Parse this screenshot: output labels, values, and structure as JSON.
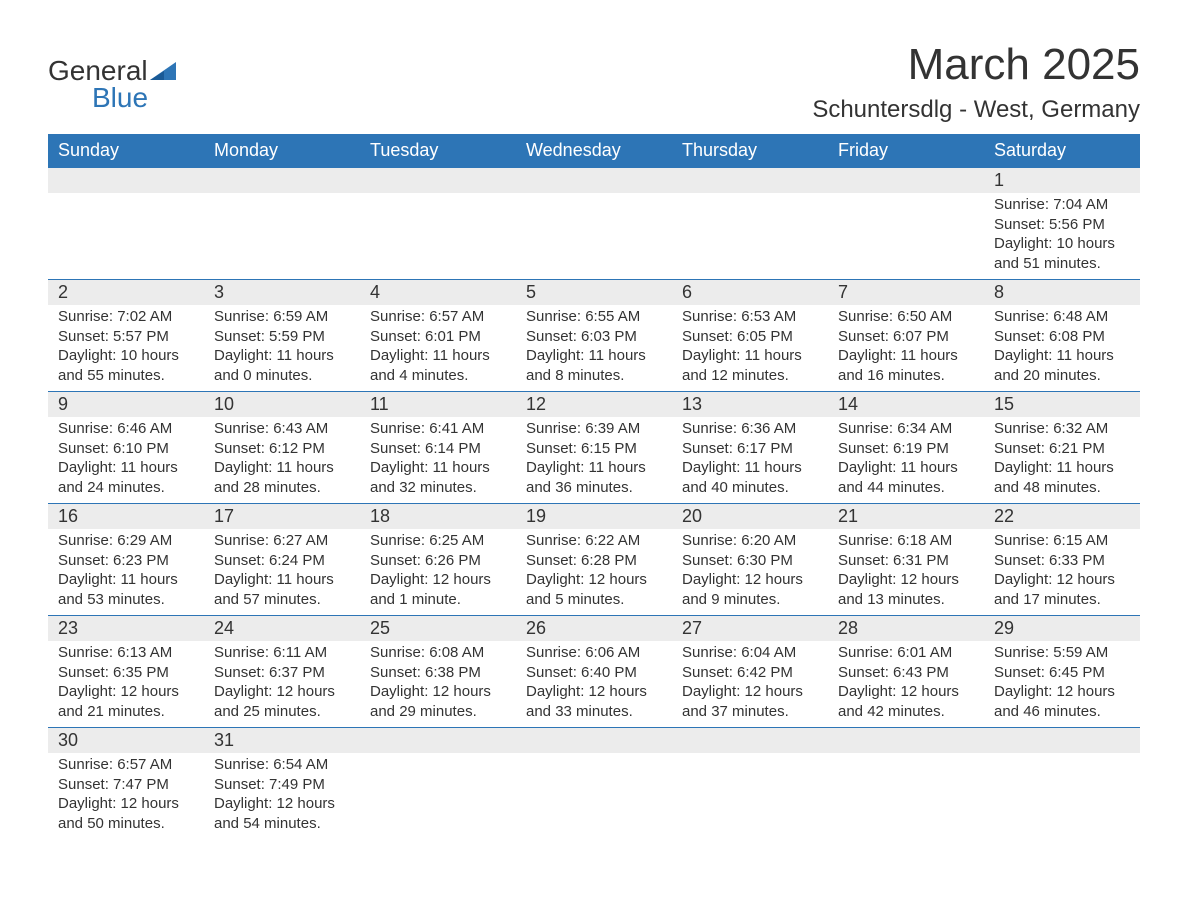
{
  "logo": {
    "word1": "General",
    "word2": "Blue"
  },
  "title": "March 2025",
  "location": "Schuntersdlg - West, Germany",
  "colors": {
    "header_bg": "#2d75b6",
    "header_text": "#ffffff",
    "daynum_bg": "#ececec",
    "body_text": "#333333",
    "row_border": "#2d75b6",
    "page_bg": "#ffffff"
  },
  "typography": {
    "month_title_fontsize": 44,
    "location_fontsize": 24,
    "header_fontsize": 18,
    "daynum_fontsize": 18,
    "body_fontsize": 15,
    "logo_fontsize": 28
  },
  "weekday_headers": [
    "Sunday",
    "Monday",
    "Tuesday",
    "Wednesday",
    "Thursday",
    "Friday",
    "Saturday"
  ],
  "labels": {
    "sunrise": "Sunrise:",
    "sunset": "Sunset:",
    "daylight": "Daylight:"
  },
  "weeks": [
    [
      null,
      null,
      null,
      null,
      null,
      null,
      {
        "n": "1",
        "sr": "7:04 AM",
        "ss": "5:56 PM",
        "dl": "10 hours and 51 minutes."
      }
    ],
    [
      {
        "n": "2",
        "sr": "7:02 AM",
        "ss": "5:57 PM",
        "dl": "10 hours and 55 minutes."
      },
      {
        "n": "3",
        "sr": "6:59 AM",
        "ss": "5:59 PM",
        "dl": "11 hours and 0 minutes."
      },
      {
        "n": "4",
        "sr": "6:57 AM",
        "ss": "6:01 PM",
        "dl": "11 hours and 4 minutes."
      },
      {
        "n": "5",
        "sr": "6:55 AM",
        "ss": "6:03 PM",
        "dl": "11 hours and 8 minutes."
      },
      {
        "n": "6",
        "sr": "6:53 AM",
        "ss": "6:05 PM",
        "dl": "11 hours and 12 minutes."
      },
      {
        "n": "7",
        "sr": "6:50 AM",
        "ss": "6:07 PM",
        "dl": "11 hours and 16 minutes."
      },
      {
        "n": "8",
        "sr": "6:48 AM",
        "ss": "6:08 PM",
        "dl": "11 hours and 20 minutes."
      }
    ],
    [
      {
        "n": "9",
        "sr": "6:46 AM",
        "ss": "6:10 PM",
        "dl": "11 hours and 24 minutes."
      },
      {
        "n": "10",
        "sr": "6:43 AM",
        "ss": "6:12 PM",
        "dl": "11 hours and 28 minutes."
      },
      {
        "n": "11",
        "sr": "6:41 AM",
        "ss": "6:14 PM",
        "dl": "11 hours and 32 minutes."
      },
      {
        "n": "12",
        "sr": "6:39 AM",
        "ss": "6:15 PM",
        "dl": "11 hours and 36 minutes."
      },
      {
        "n": "13",
        "sr": "6:36 AM",
        "ss": "6:17 PM",
        "dl": "11 hours and 40 minutes."
      },
      {
        "n": "14",
        "sr": "6:34 AM",
        "ss": "6:19 PM",
        "dl": "11 hours and 44 minutes."
      },
      {
        "n": "15",
        "sr": "6:32 AM",
        "ss": "6:21 PM",
        "dl": "11 hours and 48 minutes."
      }
    ],
    [
      {
        "n": "16",
        "sr": "6:29 AM",
        "ss": "6:23 PM",
        "dl": "11 hours and 53 minutes."
      },
      {
        "n": "17",
        "sr": "6:27 AM",
        "ss": "6:24 PM",
        "dl": "11 hours and 57 minutes."
      },
      {
        "n": "18",
        "sr": "6:25 AM",
        "ss": "6:26 PM",
        "dl": "12 hours and 1 minute."
      },
      {
        "n": "19",
        "sr": "6:22 AM",
        "ss": "6:28 PM",
        "dl": "12 hours and 5 minutes."
      },
      {
        "n": "20",
        "sr": "6:20 AM",
        "ss": "6:30 PM",
        "dl": "12 hours and 9 minutes."
      },
      {
        "n": "21",
        "sr": "6:18 AM",
        "ss": "6:31 PM",
        "dl": "12 hours and 13 minutes."
      },
      {
        "n": "22",
        "sr": "6:15 AM",
        "ss": "6:33 PM",
        "dl": "12 hours and 17 minutes."
      }
    ],
    [
      {
        "n": "23",
        "sr": "6:13 AM",
        "ss": "6:35 PM",
        "dl": "12 hours and 21 minutes."
      },
      {
        "n": "24",
        "sr": "6:11 AM",
        "ss": "6:37 PM",
        "dl": "12 hours and 25 minutes."
      },
      {
        "n": "25",
        "sr": "6:08 AM",
        "ss": "6:38 PM",
        "dl": "12 hours and 29 minutes."
      },
      {
        "n": "26",
        "sr": "6:06 AM",
        "ss": "6:40 PM",
        "dl": "12 hours and 33 minutes."
      },
      {
        "n": "27",
        "sr": "6:04 AM",
        "ss": "6:42 PM",
        "dl": "12 hours and 37 minutes."
      },
      {
        "n": "28",
        "sr": "6:01 AM",
        "ss": "6:43 PM",
        "dl": "12 hours and 42 minutes."
      },
      {
        "n": "29",
        "sr": "5:59 AM",
        "ss": "6:45 PM",
        "dl": "12 hours and 46 minutes."
      }
    ],
    [
      {
        "n": "30",
        "sr": "6:57 AM",
        "ss": "7:47 PM",
        "dl": "12 hours and 50 minutes."
      },
      {
        "n": "31",
        "sr": "6:54 AM",
        "ss": "7:49 PM",
        "dl": "12 hours and 54 minutes."
      },
      null,
      null,
      null,
      null,
      null
    ]
  ]
}
